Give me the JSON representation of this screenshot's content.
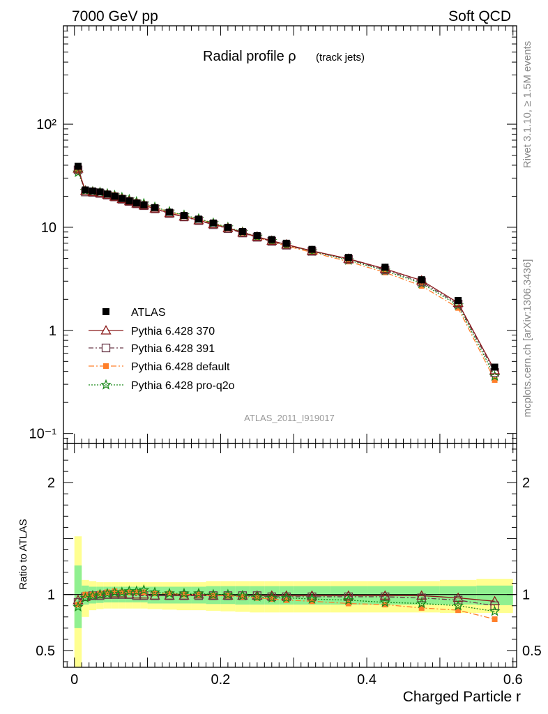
{
  "header": {
    "left": "7000 GeV pp",
    "right": "Soft QCD"
  },
  "side_labels": {
    "rivet": "Rivet 3.1.10, ≥ 1.5M events",
    "mcplots": "mcplots.cern.ch [arXiv:1306.3436]"
  },
  "colors": {
    "atlas": "#000000",
    "p370": "#8b1a1a",
    "p391": "#6b3a4a",
    "default": "#ff7f2a",
    "proq2o": "#1a8a1a",
    "band_inner": "#90f090",
    "band_outer": "#ffff90"
  },
  "chart_data": [
    {
      "type": "line",
      "title_main": "Radial profile ρ",
      "title_sub": "(track jets)",
      "watermark": "ATLAS_2011_I919017",
      "yscale": "log",
      "ylim": [
        0.08,
        900
      ],
      "xlim": [
        -0.015,
        0.605
      ],
      "ytick_labels": [
        "10⁻¹",
        "1",
        "10",
        "10²"
      ],
      "ytick_values": [
        0.1,
        1,
        10,
        100
      ],
      "legend_position": "middle-left",
      "x": [
        0.005,
        0.015,
        0.025,
        0.035,
        0.045,
        0.055,
        0.065,
        0.075,
        0.085,
        0.095,
        0.11,
        0.13,
        0.15,
        0.17,
        0.19,
        0.21,
        0.23,
        0.25,
        0.27,
        0.29,
        0.325,
        0.375,
        0.425,
        0.475,
        0.525,
        0.575
      ],
      "series": [
        {
          "name": "ATLAS",
          "key": "atlas",
          "values": [
            39,
            23,
            22.5,
            22,
            21,
            20,
            19,
            18,
            17.2,
            16.5,
            15.5,
            14,
            13,
            12,
            11,
            10,
            9.1,
            8.3,
            7.6,
            7.0,
            6.1,
            5.1,
            4.1,
            3.1,
            1.95,
            0.44
          ]
        },
        {
          "name": "Pythia 6.428 370",
          "key": "p370",
          "values": [
            37,
            22.5,
            22,
            21.5,
            20.7,
            19.8,
            18.8,
            17.9,
            17.0,
            16.3,
            15.2,
            13.7,
            12.7,
            11.7,
            10.7,
            9.8,
            8.9,
            8.1,
            7.4,
            6.8,
            5.9,
            4.95,
            3.95,
            3.05,
            1.85,
            0.41
          ]
        },
        {
          "name": "Pythia 6.428 391",
          "key": "p391",
          "values": [
            36,
            22,
            21.8,
            21.3,
            20.5,
            19.7,
            18.7,
            17.8,
            16.9,
            16.2,
            15.1,
            13.6,
            12.6,
            11.6,
            10.6,
            9.7,
            8.8,
            8.0,
            7.3,
            6.7,
            5.85,
            4.9,
            3.85,
            2.95,
            1.8,
            0.39
          ]
        },
        {
          "name": "Pythia 6.428 default",
          "key": "default",
          "values": [
            35,
            22.8,
            22.3,
            22.0,
            21.3,
            20.5,
            19.4,
            18.4,
            17.6,
            16.8,
            15.6,
            14.1,
            13.0,
            12.0,
            10.9,
            9.9,
            8.9,
            8.0,
            7.2,
            6.6,
            5.7,
            4.65,
            3.65,
            2.7,
            1.65,
            0.33
          ]
        },
        {
          "name": "Pythia 6.428 pro-q2o",
          "key": "proq2o",
          "values": [
            34,
            22.6,
            22.2,
            21.9,
            21.2,
            20.4,
            19.5,
            18.6,
            17.7,
            17.0,
            15.7,
            14.2,
            13.1,
            12.1,
            11.0,
            10.0,
            9.0,
            8.1,
            7.35,
            6.75,
            5.85,
            4.8,
            3.8,
            2.85,
            1.75,
            0.36
          ]
        }
      ]
    },
    {
      "type": "line",
      "ylabel": "Ratio to ATLAS",
      "xlabel": "Charged Particle r",
      "ylim": [
        0.35,
        2.35
      ],
      "xlim": [
        -0.015,
        0.605
      ],
      "ytick_labels": [
        "0.5",
        "1",
        "2"
      ],
      "ytick_values": [
        0.5,
        1,
        2
      ],
      "xtick_labels": [
        "0",
        "0.2",
        "0.4",
        "0.6"
      ],
      "xtick_values": [
        0,
        0.2,
        0.4,
        0.6
      ],
      "reference_line": 1,
      "band_edges": [
        0,
        0.01,
        0.02,
        0.03,
        0.04,
        0.05,
        0.06,
        0.07,
        0.08,
        0.09,
        0.1,
        0.12,
        0.14,
        0.16,
        0.18,
        0.2,
        0.22,
        0.24,
        0.26,
        0.28,
        0.3,
        0.35,
        0.4,
        0.45,
        0.5,
        0.55,
        0.6
      ],
      "band_inner": [
        [
          0.7,
          1.26
        ],
        [
          0.91,
          1.08
        ],
        [
          0.92,
          1.07
        ],
        [
          0.925,
          1.07
        ],
        [
          0.93,
          1.07
        ],
        [
          0.93,
          1.07
        ],
        [
          0.93,
          1.07
        ],
        [
          0.93,
          1.07
        ],
        [
          0.93,
          1.07
        ],
        [
          0.93,
          1.07
        ],
        [
          0.92,
          1.07
        ],
        [
          0.92,
          1.07
        ],
        [
          0.92,
          1.07
        ],
        [
          0.92,
          1.07
        ],
        [
          0.915,
          1.075
        ],
        [
          0.915,
          1.075
        ],
        [
          0.91,
          1.075
        ],
        [
          0.91,
          1.075
        ],
        [
          0.91,
          1.075
        ],
        [
          0.91,
          1.075
        ],
        [
          0.91,
          1.075
        ],
        [
          0.91,
          1.075
        ],
        [
          0.91,
          1.075
        ],
        [
          0.91,
          1.075
        ],
        [
          0.91,
          1.075
        ],
        [
          0.905,
          1.08
        ]
      ],
      "band_outer": [
        [
          0.35,
          1.52
        ],
        [
          0.8,
          1.13
        ],
        [
          0.86,
          1.12
        ],
        [
          0.87,
          1.11
        ],
        [
          0.875,
          1.11
        ],
        [
          0.875,
          1.11
        ],
        [
          0.875,
          1.11
        ],
        [
          0.875,
          1.11
        ],
        [
          0.875,
          1.11
        ],
        [
          0.875,
          1.11
        ],
        [
          0.87,
          1.11
        ],
        [
          0.865,
          1.11
        ],
        [
          0.86,
          1.11
        ],
        [
          0.86,
          1.11
        ],
        [
          0.855,
          1.12
        ],
        [
          0.85,
          1.12
        ],
        [
          0.845,
          1.12
        ],
        [
          0.84,
          1.12
        ],
        [
          0.84,
          1.12
        ],
        [
          0.84,
          1.12
        ],
        [
          0.84,
          1.12
        ],
        [
          0.84,
          1.12
        ],
        [
          0.84,
          1.12
        ],
        [
          0.84,
          1.12
        ],
        [
          0.835,
          1.13
        ],
        [
          0.835,
          1.14
        ]
      ],
      "x": [
        0.005,
        0.015,
        0.025,
        0.035,
        0.045,
        0.055,
        0.065,
        0.075,
        0.085,
        0.095,
        0.11,
        0.13,
        0.15,
        0.17,
        0.19,
        0.21,
        0.23,
        0.25,
        0.27,
        0.29,
        0.325,
        0.375,
        0.425,
        0.475,
        0.525,
        0.575
      ],
      "series": [
        {
          "name": "Pythia 6.428 370",
          "key": "p370",
          "values": [
            0.95,
            0.98,
            0.99,
            1.0,
            1.0,
            1.01,
            1.01,
            1.0,
            1.0,
            1.0,
            0.99,
            0.99,
            0.99,
            1.0,
            0.99,
            0.99,
            0.99,
            0.99,
            0.99,
            0.99,
            0.99,
            0.99,
            0.99,
            0.99,
            0.97,
            0.94
          ]
        },
        {
          "name": "Pythia 6.428 391",
          "key": "p391",
          "values": [
            0.93,
            0.98,
            0.99,
            0.99,
            1.0,
            1.0,
            1.0,
            1.0,
            0.99,
            0.99,
            0.99,
            0.99,
            0.99,
            0.99,
            0.99,
            0.99,
            0.99,
            0.99,
            0.98,
            0.98,
            0.98,
            0.98,
            0.98,
            0.97,
            0.95,
            0.9
          ]
        },
        {
          "name": "Pythia 6.428 default",
          "key": "default",
          "values": [
            0.91,
            1.0,
            1.0,
            1.01,
            1.02,
            1.03,
            1.02,
            1.02,
            1.02,
            1.02,
            1.01,
            1.01,
            1.0,
            1.0,
            0.99,
            0.99,
            0.98,
            0.97,
            0.96,
            0.95,
            0.94,
            0.92,
            0.91,
            0.88,
            0.86,
            0.78
          ]
        },
        {
          "name": "Pythia 6.428 pro-q2o",
          "key": "proq2o",
          "values": [
            0.89,
            0.97,
            0.99,
            1.0,
            1.01,
            1.02,
            1.02,
            1.03,
            1.03,
            1.04,
            1.02,
            1.01,
            1.01,
            1.01,
            1.0,
            1.0,
            0.99,
            0.98,
            0.97,
            0.97,
            0.96,
            0.95,
            0.93,
            0.92,
            0.9,
            0.85
          ]
        }
      ]
    }
  ]
}
